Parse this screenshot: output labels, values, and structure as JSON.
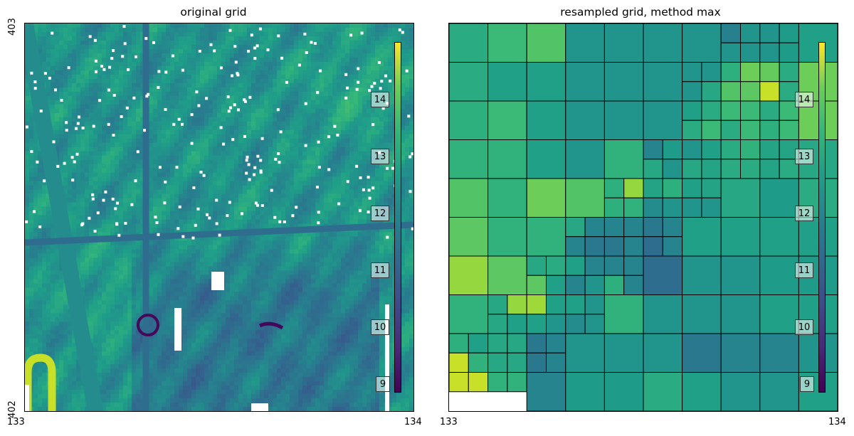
{
  "chart_data": [
    {
      "type": "heatmap",
      "title": "original grid",
      "x_ticks": [
        "133",
        "134"
      ],
      "y_ticks": [
        "403",
        "402"
      ],
      "xlim": [
        133,
        134
      ],
      "ylim": [
        402,
        403
      ],
      "colormap": "viridis",
      "colorbar": {
        "range": [
          8.8,
          15.0
        ],
        "tick_values": [
          9,
          10,
          11,
          12,
          13,
          14
        ],
        "tick_labels": [
          "9",
          "10",
          "11",
          "12",
          "13",
          "14"
        ],
        "placement": "inside-right"
      },
      "features": [
        {
          "kind": "diagonal-road",
          "value": 11.8
        },
        {
          "kind": "horizontal-road",
          "value": 11.0
        },
        {
          "kind": "vertical-road",
          "value": 11.0
        },
        {
          "kind": "warm-arc-bottom-left",
          "value": 14.5
        },
        {
          "kind": "dark-ring",
          "value": 8.9
        },
        {
          "kind": "dark-streak",
          "value": 8.9
        }
      ],
      "nodata_color": "#ffffff"
    },
    {
      "type": "heatmap",
      "title": "resampled grid, method max",
      "x_ticks": [
        "133",
        "134"
      ],
      "y_ticks": [],
      "xlim": [
        133,
        134
      ],
      "ylim": [
        402,
        403
      ],
      "colormap": "viridis",
      "method": "max",
      "colorbar": {
        "range": [
          8.8,
          15.0
        ],
        "tick_values": [
          9,
          10,
          11,
          12,
          13,
          14
        ],
        "tick_labels": [
          "9",
          "10",
          "11",
          "12",
          "13",
          "14"
        ],
        "placement": "inside-right"
      },
      "cells_note": "quadtree cells on a 10x10 base grid; each cell [col, row, size_in_base_units, value], row 0 at top",
      "cells": [
        [
          0,
          0,
          1,
          12.6
        ],
        [
          1,
          0,
          1,
          13.0
        ],
        [
          2,
          0,
          1,
          13.3
        ],
        [
          3,
          0,
          1,
          12.0
        ],
        [
          4,
          0,
          1,
          12.0
        ],
        [
          5,
          0,
          1,
          12.0
        ],
        [
          6,
          0,
          1,
          12.0
        ],
        [
          7,
          0,
          0.5,
          11.5
        ],
        [
          7.5,
          0,
          0.5,
          12.0
        ],
        [
          8,
          0,
          0.5,
          12.0
        ],
        [
          8.5,
          0,
          0.5,
          12.2
        ],
        [
          7,
          0.5,
          0.5,
          12.0
        ],
        [
          7.5,
          0.5,
          0.5,
          12.0
        ],
        [
          8,
          0.5,
          0.5,
          12.0
        ],
        [
          8.5,
          0.5,
          0.5,
          12.2
        ],
        [
          9,
          0,
          1,
          12.3
        ],
        [
          0,
          1,
          1,
          12.6
        ],
        [
          1,
          1,
          1,
          12.3
        ],
        [
          2,
          1,
          1,
          12.3
        ],
        [
          3,
          1,
          1,
          12.0
        ],
        [
          4,
          1,
          1,
          12.0
        ],
        [
          5,
          1,
          1,
          12.0
        ],
        [
          6,
          1,
          0.5,
          12.0
        ],
        [
          6.5,
          1,
          0.5,
          12.0
        ],
        [
          6,
          1.5,
          0.5,
          12.0
        ],
        [
          6.5,
          1.5,
          0.5,
          12.5
        ],
        [
          7,
          1,
          0.5,
          12.7
        ],
        [
          7.5,
          1,
          0.5,
          13.6
        ],
        [
          7,
          1.5,
          0.5,
          13.3
        ],
        [
          7.5,
          1.5,
          0.5,
          13.4
        ],
        [
          8,
          1,
          0.5,
          13.5
        ],
        [
          8.5,
          1,
          0.5,
          12.6
        ],
        [
          8,
          1.5,
          0.5,
          14.5
        ],
        [
          8.5,
          1.5,
          0.5,
          12.6
        ],
        [
          9,
          1,
          1,
          13.6
        ],
        [
          0,
          2,
          1,
          12.7
        ],
        [
          1,
          2,
          1,
          13.0
        ],
        [
          2,
          2,
          1,
          12.3
        ],
        [
          3,
          2,
          1,
          12.0
        ],
        [
          4,
          2,
          1,
          12.0
        ],
        [
          5,
          2,
          1,
          12.0
        ],
        [
          6,
          2,
          0.5,
          12.3
        ],
        [
          6.5,
          2,
          0.5,
          12.6
        ],
        [
          6,
          2.5,
          0.5,
          12.6
        ],
        [
          6.5,
          2.5,
          0.5,
          13.0
        ],
        [
          7,
          2,
          0.5,
          13.0
        ],
        [
          7.5,
          2,
          0.5,
          13.0
        ],
        [
          7,
          2.5,
          0.5,
          12.6
        ],
        [
          7.5,
          2.5,
          0.5,
          13.0
        ],
        [
          8,
          2,
          0.5,
          12.6
        ],
        [
          8.5,
          2,
          0.5,
          13.0
        ],
        [
          8,
          2.5,
          0.5,
          12.7
        ],
        [
          8.5,
          2.5,
          0.5,
          13.0
        ],
        [
          9,
          2,
          1,
          13.6
        ],
        [
          0,
          3,
          1,
          12.8
        ],
        [
          1,
          3,
          1,
          12.8
        ],
        [
          2,
          3,
          1,
          12.3
        ],
        [
          3,
          3,
          1,
          12.0
        ],
        [
          4,
          3,
          1,
          12.8
        ],
        [
          5,
          3,
          0.5,
          11.6
        ],
        [
          5.5,
          3,
          0.5,
          12.2
        ],
        [
          5,
          3.5,
          0.5,
          12.5
        ],
        [
          5.5,
          3.5,
          0.5,
          12.0
        ],
        [
          6,
          3,
          0.5,
          12.0
        ],
        [
          6.5,
          3,
          0.5,
          12.3
        ],
        [
          6,
          3.5,
          0.5,
          12.5
        ],
        [
          6.5,
          3.5,
          0.5,
          12.4
        ],
        [
          7,
          3,
          0.5,
          12.6
        ],
        [
          7.5,
          3,
          0.5,
          12.8
        ],
        [
          7,
          3.5,
          0.5,
          12.6
        ],
        [
          7.5,
          3.5,
          0.5,
          12.6
        ],
        [
          8,
          3,
          0.5,
          12.4
        ],
        [
          8.5,
          3,
          0.5,
          12.4
        ],
        [
          8,
          3.5,
          0.5,
          12.4
        ],
        [
          8.5,
          3.5,
          0.5,
          12.6
        ],
        [
          9,
          3,
          1,
          12.5
        ],
        [
          0,
          4,
          1,
          13.3
        ],
        [
          1,
          4,
          1,
          12.8
        ],
        [
          2,
          4,
          1,
          13.6
        ],
        [
          3,
          4,
          1,
          13.3
        ],
        [
          4,
          4,
          0.5,
          12.7
        ],
        [
          4.5,
          4,
          0.5,
          14.0
        ],
        [
          4,
          4.5,
          0.5,
          12.7
        ],
        [
          4.5,
          4.5,
          0.5,
          12.8
        ],
        [
          5,
          4,
          0.5,
          12.4
        ],
        [
          5.5,
          4,
          0.5,
          12.7
        ],
        [
          5,
          4.5,
          0.5,
          11.8
        ],
        [
          5.5,
          4.5,
          0.5,
          12.0
        ],
        [
          6,
          4,
          0.5,
          12.3
        ],
        [
          6.5,
          4,
          0.5,
          12.4
        ],
        [
          6,
          4.5,
          0.5,
          12.0
        ],
        [
          6.5,
          4.5,
          0.5,
          12.0
        ],
        [
          7,
          4,
          1,
          12.5
        ],
        [
          8,
          4,
          1,
          12.2
        ],
        [
          9,
          4,
          1,
          12.6
        ],
        [
          0,
          5,
          1,
          13.4
        ],
        [
          1,
          5,
          1,
          12.8
        ],
        [
          2,
          5,
          1,
          12.8
        ],
        [
          3,
          5,
          0.5,
          12.5
        ],
        [
          3.5,
          5,
          0.5,
          11.6
        ],
        [
          3,
          5.5,
          0.5,
          11.6
        ],
        [
          3.5,
          5.5,
          0.5,
          11.3
        ],
        [
          4,
          5,
          0.5,
          11.6
        ],
        [
          4.5,
          5,
          0.5,
          11.6
        ],
        [
          4,
          5.5,
          0.5,
          11.3
        ],
        [
          4.5,
          5.5,
          0.5,
          11.6
        ],
        [
          5,
          5,
          0.5,
          11.3
        ],
        [
          5.5,
          5,
          0.5,
          11.6
        ],
        [
          5,
          5.5,
          0.5,
          11.0
        ],
        [
          5.5,
          5.5,
          0.5,
          11.6
        ],
        [
          6,
          5,
          1,
          12.3
        ],
        [
          7,
          5,
          1,
          12.3
        ],
        [
          8,
          5,
          1,
          12.3
        ],
        [
          9,
          5,
          1,
          12.3
        ],
        [
          0,
          6,
          1,
          14.0
        ],
        [
          1,
          6,
          1,
          13.4
        ],
        [
          2,
          6,
          0.5,
          12.5
        ],
        [
          2.5,
          6,
          0.5,
          12.6
        ],
        [
          2,
          6.5,
          0.5,
          13.4
        ],
        [
          2.5,
          6.5,
          0.5,
          12.3
        ],
        [
          3,
          6,
          0.5,
          12.3
        ],
        [
          3.5,
          6,
          0.5,
          11.6
        ],
        [
          3,
          6.5,
          0.5,
          11.6
        ],
        [
          3.5,
          6.5,
          0.5,
          12.0
        ],
        [
          4,
          6,
          0.5,
          11.6
        ],
        [
          4.5,
          6,
          0.5,
          11.6
        ],
        [
          4,
          6.5,
          0.5,
          12.7
        ],
        [
          4.5,
          6.5,
          0.5,
          11.6
        ],
        [
          5,
          6,
          1,
          11.0
        ],
        [
          6,
          6,
          1,
          12.0
        ],
        [
          7,
          6,
          1,
          12.0
        ],
        [
          8,
          6,
          1,
          12.2
        ],
        [
          9,
          6,
          1,
          12.2
        ],
        [
          0,
          7,
          1,
          12.8
        ],
        [
          1,
          7,
          0.5,
          12.5
        ],
        [
          1.5,
          7,
          0.5,
          14.0
        ],
        [
          1,
          7.5,
          0.5,
          12.5
        ],
        [
          1.5,
          7.5,
          0.5,
          12.3
        ],
        [
          2,
          7,
          0.5,
          14.1
        ],
        [
          2.5,
          7,
          0.5,
          12.3
        ],
        [
          2,
          7.5,
          0.5,
          12.3
        ],
        [
          2.5,
          7.5,
          0.5,
          12.0
        ],
        [
          3,
          7,
          0.5,
          12.3
        ],
        [
          3.5,
          7,
          0.5,
          12.0
        ],
        [
          3,
          7.5,
          0.5,
          11.8
        ],
        [
          3.5,
          7.5,
          0.5,
          12.0
        ],
        [
          4,
          7,
          1,
          12.8
        ],
        [
          5,
          7,
          1,
          12.0
        ],
        [
          6,
          7,
          1,
          12.0
        ],
        [
          7,
          7,
          1,
          12.0
        ],
        [
          8,
          7,
          1,
          12.3
        ],
        [
          9,
          7,
          1,
          12.3
        ],
        [
          0,
          8,
          0.5,
          12.7
        ],
        [
          0.5,
          8,
          0.5,
          12.3
        ],
        [
          0,
          8.5,
          0.5,
          14.5
        ],
        [
          0.5,
          8.5,
          0.5,
          12.8
        ],
        [
          1,
          8,
          0.5,
          12.5
        ],
        [
          1.5,
          8,
          0.5,
          12.5
        ],
        [
          1,
          8.5,
          0.5,
          12.5
        ],
        [
          1.5,
          8.5,
          0.5,
          12.5
        ],
        [
          2,
          8,
          0.5,
          11.3
        ],
        [
          2.5,
          8,
          0.5,
          11.6
        ],
        [
          2,
          8.5,
          0.5,
          11.3
        ],
        [
          2.5,
          8.5,
          0.5,
          11.6
        ],
        [
          3,
          8,
          1,
          12.0
        ],
        [
          4,
          8,
          1,
          12.0
        ],
        [
          5,
          8,
          1,
          12.0
        ],
        [
          6,
          8,
          1,
          11.3
        ],
        [
          7,
          8,
          1,
          11.6
        ],
        [
          8,
          8,
          1,
          11.6
        ],
        [
          9,
          8,
          1,
          12.0
        ],
        [
          0,
          9,
          0.5,
          14.5
        ],
        [
          0.5,
          9,
          0.5,
          14.5
        ],
        [
          1,
          9,
          0.5,
          12.8
        ],
        [
          1.5,
          9,
          0.5,
          12.8
        ],
        [
          2,
          9,
          1,
          11.6
        ],
        [
          3,
          9,
          1,
          12.2
        ],
        [
          4,
          9,
          1,
          12.2
        ],
        [
          5,
          9,
          1,
          12.6
        ],
        [
          6,
          9,
          1,
          12.3
        ],
        [
          7,
          9,
          1,
          12.0
        ],
        [
          8,
          9,
          1,
          12.0
        ],
        [
          9,
          9,
          1,
          12.3
        ]
      ]
    }
  ]
}
